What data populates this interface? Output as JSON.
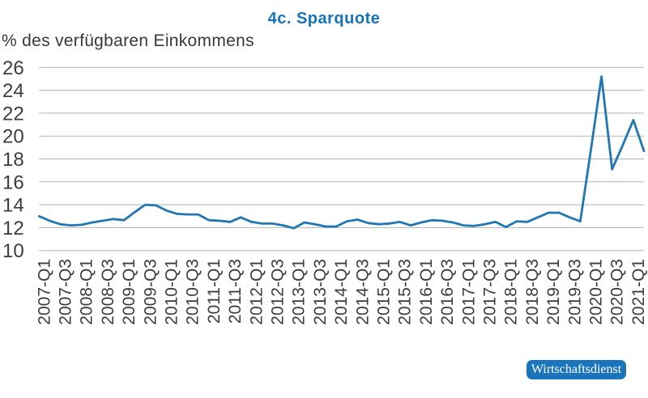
{
  "header": {
    "title": "4c. Sparquote",
    "subtitle": "% des verfügbaren Einkommens"
  },
  "badge": {
    "label": "Wirtschaftsdienst"
  },
  "colors": {
    "title": "#1373bd",
    "subtitle": "#383838",
    "line": "#1f77b4",
    "grid": "#b3b3b3",
    "tick_label": "#3d3d3d",
    "badge_bg": "#1b75bc",
    "badge_text": "#ffffff",
    "background": "#ffffff"
  },
  "chart_data": {
    "type": "line",
    "title": "4c. Sparquote",
    "ylabel": "% des verfügbaren Einkommens",
    "series_name": "Sparquote",
    "x": [
      "2007-Q1",
      "2007-Q2",
      "2007-Q3",
      "2007-Q4",
      "2008-Q1",
      "2008-Q2",
      "2008-Q3",
      "2008-Q4",
      "2009-Q1",
      "2009-Q2",
      "2009-Q3",
      "2009-Q4",
      "2010-Q1",
      "2010-Q2",
      "2010-Q3",
      "2010-Q4",
      "2011-Q1",
      "2011-Q2",
      "2011-Q3",
      "2011-Q4",
      "2012-Q1",
      "2012-Q2",
      "2012-Q3",
      "2012-Q4",
      "2013-Q1",
      "2013-Q2",
      "2013-Q3",
      "2013-Q4",
      "2014-Q1",
      "2014-Q2",
      "2014-Q3",
      "2014-Q4",
      "2015-Q1",
      "2015-Q2",
      "2015-Q3",
      "2015-Q4",
      "2016-Q1",
      "2016-Q2",
      "2016-Q3",
      "2016-Q4",
      "2017-Q1",
      "2017-Q2",
      "2017-Q3",
      "2017-Q4",
      "2018-Q1",
      "2018-Q2",
      "2018-Q3",
      "2018-Q4",
      "2019-Q1",
      "2019-Q2",
      "2019-Q3",
      "2019-Q4",
      "2020-Q1",
      "2020-Q2",
      "2020-Q3",
      "2020-Q4",
      "2021-Q1",
      "2021-Q2"
    ],
    "values": [
      13.0,
      12.6,
      12.3,
      12.2,
      12.25,
      12.45,
      12.6,
      12.75,
      12.65,
      13.35,
      14.0,
      13.95,
      13.5,
      13.2,
      13.15,
      13.15,
      12.65,
      12.6,
      12.5,
      12.9,
      12.5,
      12.35,
      12.35,
      12.2,
      11.95,
      12.45,
      12.3,
      12.1,
      12.1,
      12.55,
      12.7,
      12.4,
      12.3,
      12.35,
      12.5,
      12.2,
      12.45,
      12.65,
      12.6,
      12.45,
      12.2,
      12.15,
      12.3,
      12.5,
      12.05,
      12.55,
      12.5,
      12.9,
      13.3,
      13.3,
      12.9,
      12.55,
      18.8,
      25.2,
      17.1,
      19.2,
      21.4,
      18.7
    ],
    "ylim": [
      10,
      26
    ],
    "yticks": [
      10,
      12,
      14,
      16,
      18,
      20,
      22,
      24,
      26
    ],
    "xtick_every": 2,
    "grid": "horizontal",
    "legend": "none"
  }
}
